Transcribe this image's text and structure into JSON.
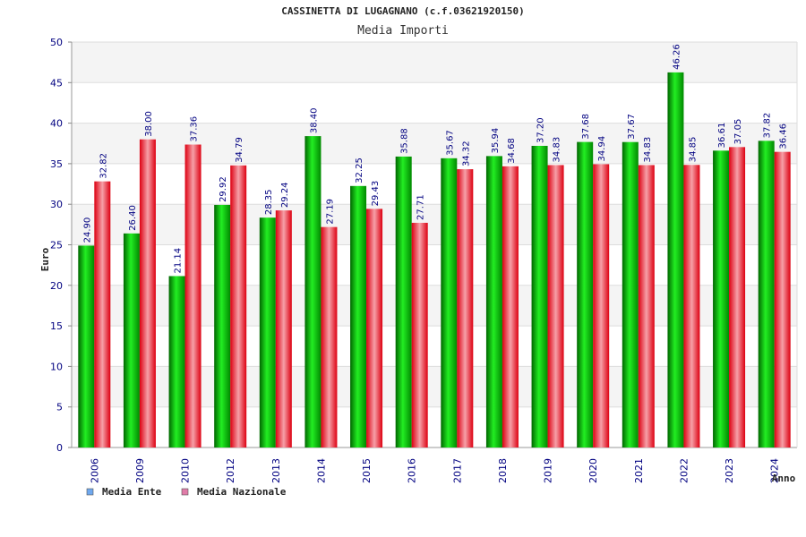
{
  "chart_data": {
    "type": "bar",
    "title": "CASSINETTA DI LUGAGNANO (c.f.03621920150)",
    "subtitle": "Media Importi",
    "ylabel": "Euro",
    "xlabel": "Anno",
    "ylim": [
      0,
      50
    ],
    "yticks": [
      0,
      5,
      10,
      15,
      20,
      25,
      30,
      35,
      40,
      45,
      50
    ],
    "grid": true,
    "legend_position": "bottom-left",
    "categories": [
      "2006",
      "2009",
      "2010",
      "2012",
      "2013",
      "2014",
      "2015",
      "2016",
      "2017",
      "2018",
      "2019",
      "2020",
      "2021",
      "2022",
      "2023",
      "2024"
    ],
    "series": [
      {
        "name": "Media Ente",
        "bar_color": "#00bb00",
        "legend_color": "#6fa8ee",
        "values": [
          24.9,
          26.4,
          21.14,
          29.92,
          28.35,
          38.4,
          32.25,
          35.88,
          35.67,
          35.94,
          37.2,
          37.68,
          37.67,
          46.26,
          36.61,
          37.82
        ],
        "labels": [
          "24.90",
          "26.40",
          "21.14",
          "29.92",
          "28.35",
          "38.40",
          "32.25",
          "35.88",
          "35.67",
          "35.94",
          "37.20",
          "37.68",
          "37.67",
          "46.26",
          "36.61",
          "37.82"
        ]
      },
      {
        "name": "Media Nazionale",
        "bar_color": "#ee1122",
        "legend_color": "#e07ca8",
        "values": [
          32.82,
          38.0,
          37.36,
          34.79,
          29.24,
          27.19,
          29.43,
          27.71,
          34.32,
          34.68,
          34.83,
          34.94,
          34.83,
          34.85,
          37.05,
          36.46
        ],
        "labels": [
          "32.82",
          "38.00",
          "37.36",
          "34.79",
          "29.24",
          "27.19",
          "29.43",
          "27.71",
          "34.32",
          "34.68",
          "34.83",
          "34.94",
          "34.83",
          "34.85",
          "37.05",
          "36.46"
        ]
      }
    ]
  }
}
